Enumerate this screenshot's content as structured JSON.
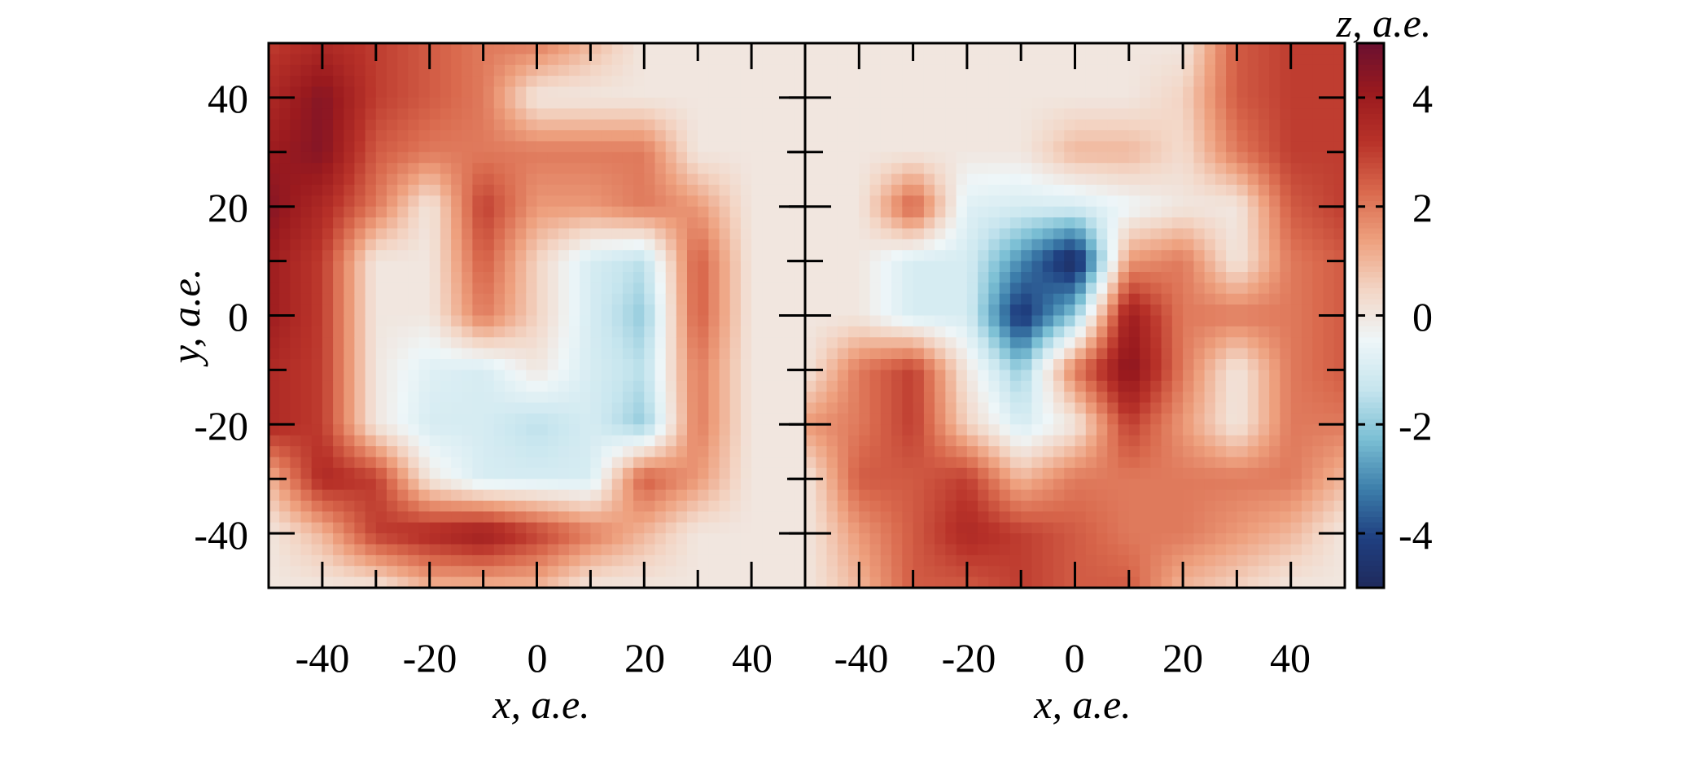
{
  "chart_data": [
    {
      "type": "heatmap",
      "panel": "left",
      "xlabel": "x, a.e.",
      "ylabel": "y, a.e.",
      "xlim": [
        -50,
        50
      ],
      "ylim": [
        -50,
        50
      ],
      "x_ticks": [
        "-40",
        "-20",
        "0",
        "20",
        "40"
      ],
      "y_ticks": [
        "40",
        "20",
        "0",
        "-20",
        "-40"
      ],
      "grid_x": [
        -50,
        -40,
        -30,
        -20,
        -10,
        0,
        10,
        20,
        30,
        40,
        50
      ],
      "grid_y": [
        50,
        40,
        30,
        20,
        10,
        0,
        -10,
        -20,
        -30,
        -40,
        -50
      ],
      "z": [
        [
          3,
          3.5,
          3,
          2.5,
          2,
          2,
          1,
          0,
          0,
          0,
          0
        ],
        [
          3.5,
          4.5,
          3,
          2.5,
          2,
          0,
          0,
          0,
          0,
          0,
          0
        ],
        [
          4,
          4.5,
          2.5,
          2,
          2,
          2,
          2,
          2,
          0,
          0,
          0
        ],
        [
          4.5,
          3.5,
          2,
          0,
          3,
          1.5,
          1.5,
          2,
          1.5,
          0,
          0
        ],
        [
          4,
          3,
          0,
          0,
          2.5,
          0.5,
          -1,
          -1.5,
          2.5,
          0,
          0
        ],
        [
          4,
          3,
          0,
          0,
          2,
          0.5,
          -1,
          -2,
          2.5,
          0,
          0
        ],
        [
          3.5,
          3,
          0,
          -0.8,
          -1,
          0,
          -1,
          -1.5,
          2,
          0,
          0
        ],
        [
          3.5,
          3,
          0,
          -1,
          -1,
          -1.5,
          -1,
          -2,
          2,
          0,
          0
        ],
        [
          1,
          3.5,
          3,
          0,
          -1,
          -1,
          -1,
          2.5,
          1.5,
          0,
          0
        ],
        [
          0,
          1,
          3,
          3.5,
          4,
          3,
          2,
          1,
          0,
          0,
          0
        ],
        [
          0,
          0,
          0,
          1,
          1,
          1,
          0,
          0,
          0,
          0,
          0
        ]
      ]
    },
    {
      "type": "heatmap",
      "panel": "right",
      "xlabel": "x, a.e.",
      "xlim": [
        -50,
        50
      ],
      "ylim": [
        -50,
        50
      ],
      "x_ticks": [
        "-40",
        "-20",
        "0",
        "20",
        "40"
      ],
      "grid_x": [
        -50,
        -40,
        -30,
        -20,
        -10,
        0,
        10,
        20,
        30,
        40,
        50
      ],
      "grid_y": [
        50,
        40,
        30,
        20,
        10,
        0,
        -10,
        -20,
        -30,
        -40,
        -50
      ],
      "z": [
        [
          0,
          0,
          0,
          0,
          0,
          0,
          0,
          0,
          2.5,
          3,
          3
        ],
        [
          0,
          0,
          0,
          0,
          0,
          0,
          0,
          0.5,
          2.5,
          3,
          3
        ],
        [
          0,
          0,
          0,
          0,
          0,
          1,
          1,
          0.3,
          2,
          3,
          3
        ],
        [
          0,
          0,
          2.5,
          -0.8,
          -1,
          -1,
          -0.5,
          0,
          0,
          2.5,
          3
        ],
        [
          0,
          0,
          -1,
          -1,
          -3,
          -5,
          1.5,
          2,
          0,
          2,
          2.5
        ],
        [
          0,
          0,
          -1,
          -1,
          -4.5,
          -2,
          4,
          2,
          2,
          2,
          2.5
        ],
        [
          0,
          2,
          3,
          0,
          -2,
          2,
          4.5,
          2,
          0,
          2,
          2.5
        ],
        [
          1.5,
          2,
          3,
          0.5,
          -1,
          0,
          3,
          1.5,
          0,
          2,
          2
        ],
        [
          0,
          2.5,
          2.5,
          3,
          1,
          2,
          2,
          2,
          2,
          2,
          1
        ],
        [
          0,
          1.5,
          2.5,
          3.5,
          3,
          2.5,
          2,
          2,
          1.5,
          1,
          0
        ],
        [
          0,
          1,
          2.5,
          2.5,
          3,
          2.5,
          2.5,
          1,
          0.5,
          0,
          0
        ]
      ]
    }
  ],
  "colorbar": {
    "label": "z, a.e.",
    "range": [
      -5,
      5
    ],
    "ticks": [
      "4",
      "2",
      "0",
      "-2",
      "-4"
    ],
    "colormap": "red-blue diverging",
    "colors": [
      "#1f2a5c",
      "#1f3f80",
      "#3d7fab",
      "#7bbfd4",
      "#c6e5ee",
      "#eef6f8",
      "#f3d6c6",
      "#eea17f",
      "#d9694d",
      "#b83229",
      "#9a1a1e",
      "#6a1030"
    ]
  }
}
